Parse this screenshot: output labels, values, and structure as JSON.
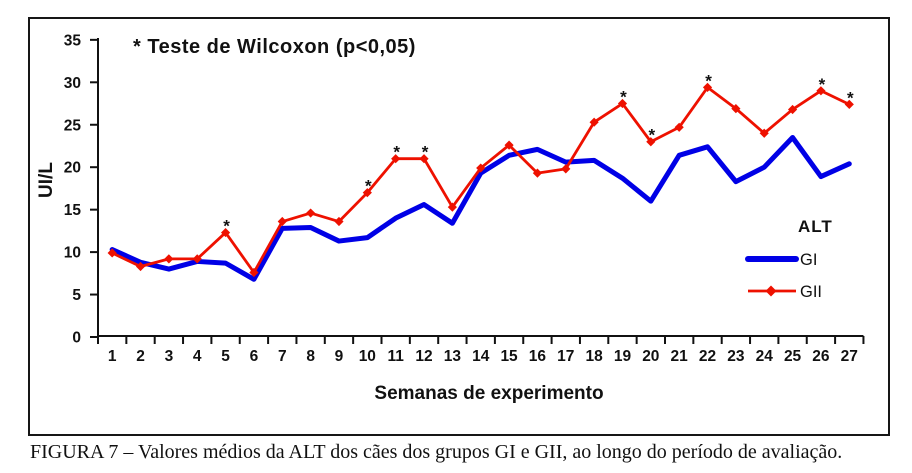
{
  "figure": {
    "caption": "FIGURA 7 – Valores médios da ALT dos cães dos grupos GI e GII, ao longo do período de avaliação."
  },
  "chart_data": {
    "type": "line",
    "title_annotation": "* Teste de Wilcoxon (p<0,05)",
    "xlabel": "Semanas de experimento",
    "ylabel": "UI/L",
    "x": [
      1,
      2,
      3,
      4,
      5,
      6,
      7,
      8,
      9,
      10,
      11,
      12,
      13,
      14,
      15,
      16,
      17,
      18,
      19,
      20,
      21,
      22,
      23,
      24,
      25,
      26,
      27
    ],
    "yticks": [
      0,
      5,
      10,
      15,
      20,
      25,
      30,
      35
    ],
    "ylim": [
      0,
      35
    ],
    "grid": false,
    "legend": {
      "title": "ALT",
      "position": "right-middle"
    },
    "series": [
      {
        "name": "GI",
        "color": "#0000e6",
        "line_width": 5,
        "marker": "none",
        "values": [
          10.3,
          8.8,
          8.0,
          8.9,
          8.7,
          6.8,
          12.8,
          12.9,
          11.3,
          11.7,
          14.0,
          15.6,
          13.4,
          19.3,
          21.4,
          22.1,
          20.6,
          20.8,
          18.7,
          16.0,
          21.4,
          22.4,
          18.3,
          20.0,
          23.5,
          18.9,
          20.4
        ]
      },
      {
        "name": "GII",
        "color": "#ee1100",
        "line_width": 2.8,
        "marker": "diamond",
        "values": [
          9.9,
          8.3,
          9.2,
          9.2,
          12.3,
          7.6,
          13.6,
          14.6,
          13.6,
          17.0,
          21.0,
          21.0,
          15.3,
          19.9,
          22.6,
          19.3,
          19.8,
          25.3,
          27.5,
          23.0,
          24.7,
          29.4,
          26.9,
          24.0,
          26.8,
          29.0,
          27.4
        ],
        "significance_symbol": "*",
        "significant_weeks": [
          5,
          10,
          11,
          12,
          19,
          20,
          22,
          26,
          27
        ]
      }
    ]
  }
}
